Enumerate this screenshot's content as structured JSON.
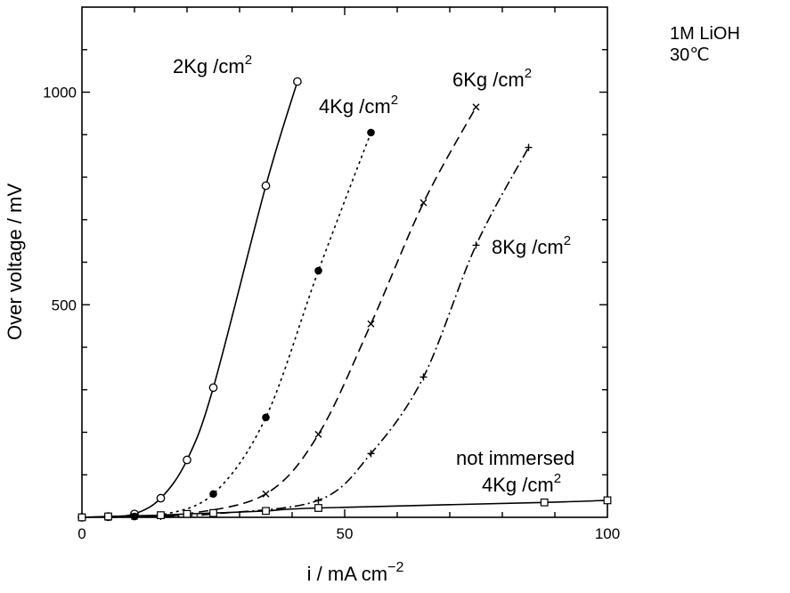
{
  "chart_data": {
    "type": "line",
    "title": "",
    "conditions": [
      "1M LiOH",
      "30℃"
    ],
    "xlabel": {
      "base": "i / mA cm",
      "sup": "−2"
    },
    "ylabel": "Over voltage / mV",
    "xlim": [
      0,
      100
    ],
    "ylim": [
      0,
      1200
    ],
    "x_ticks": [
      0,
      50,
      100
    ],
    "y_ticks": [
      500,
      1000
    ],
    "grid": false,
    "series": [
      {
        "name": "2Kg /cm",
        "name_sup": "2",
        "marker": "circle-open",
        "dash": "solid",
        "points": [
          [
            0,
            0
          ],
          [
            5,
            2
          ],
          [
            10,
            8
          ],
          [
            15,
            45
          ],
          [
            20,
            135
          ],
          [
            25,
            305
          ],
          [
            35,
            780
          ],
          [
            41,
            1025
          ]
        ]
      },
      {
        "name": "4Kg /cm",
        "name_sup": "2",
        "marker": "circle-filled",
        "dash": "dotted",
        "points": [
          [
            5,
            0
          ],
          [
            10,
            2
          ],
          [
            15,
            5
          ],
          [
            25,
            55
          ],
          [
            35,
            235
          ],
          [
            45,
            580
          ],
          [
            55,
            905
          ]
        ]
      },
      {
        "name": "6Kg /cm",
        "name_sup": "2",
        "marker": "x",
        "dash": "dashed",
        "points": [
          [
            5,
            0
          ],
          [
            10,
            2
          ],
          [
            20,
            8
          ],
          [
            35,
            55
          ],
          [
            45,
            195
          ],
          [
            55,
            455
          ],
          [
            65,
            740
          ],
          [
            75,
            965
          ]
        ]
      },
      {
        "name": "8Kg /cm",
        "name_sup": "2",
        "marker": "plus",
        "dash": "dashdot",
        "points": [
          [
            5,
            0
          ],
          [
            15,
            2
          ],
          [
            25,
            8
          ],
          [
            45,
            40
          ],
          [
            55,
            150
          ],
          [
            65,
            330
          ],
          [
            75,
            640
          ],
          [
            85,
            870
          ]
        ]
      },
      {
        "name": "not immersed",
        "name_line2": "4Kg /cm",
        "name_sup": "2",
        "marker": "square-open",
        "dash": "solid",
        "points": [
          [
            0,
            0
          ],
          [
            5,
            2
          ],
          [
            15,
            5
          ],
          [
            20,
            8
          ],
          [
            25,
            10
          ],
          [
            35,
            15
          ],
          [
            45,
            22
          ],
          [
            88,
            35
          ],
          [
            100,
            40
          ]
        ]
      }
    ]
  }
}
